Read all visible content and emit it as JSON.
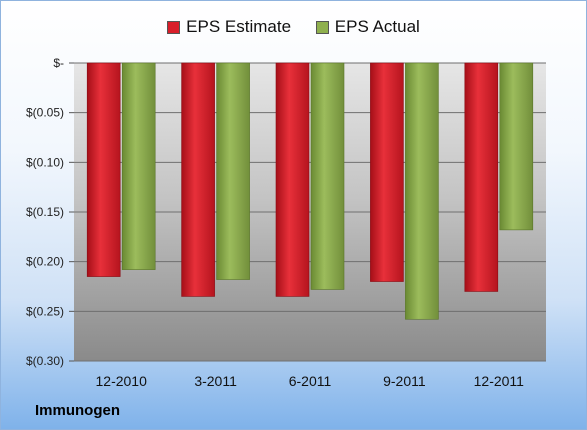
{
  "company": "Immunogen",
  "colors": {
    "estimate": "#d81e2a",
    "actual": "#8fb04e"
  },
  "chart_data": {
    "type": "bar",
    "categories": [
      "12-2010",
      "3-2011",
      "6-2011",
      "9-2011",
      "12-2011"
    ],
    "series": [
      {
        "name": "EPS Estimate",
        "values": [
          -0.215,
          -0.235,
          -0.235,
          -0.22,
          -0.23
        ]
      },
      {
        "name": "EPS Actual",
        "values": [
          -0.208,
          -0.218,
          -0.228,
          -0.258,
          -0.168
        ]
      }
    ],
    "ylim": [
      -0.3,
      0
    ],
    "yticks": [
      0,
      -0.05,
      -0.1,
      -0.15,
      -0.2,
      -0.25,
      -0.3
    ],
    "ytick_labels": [
      "$-",
      "$(0.05)",
      "$(0.10)",
      "$(0.15)",
      "$(0.20)",
      "$(0.25)",
      "$(0.30)"
    ],
    "grid": true,
    "legend": "top"
  }
}
